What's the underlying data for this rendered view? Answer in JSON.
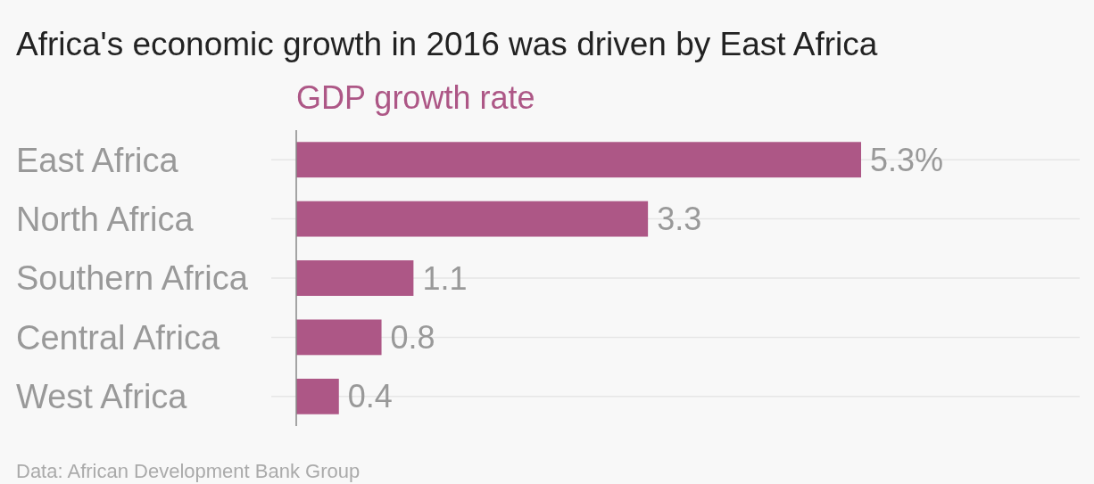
{
  "chart_data": {
    "type": "bar",
    "orientation": "horizontal",
    "title": "Africa's economic growth in 2016 was driven by East Africa",
    "categories": [
      "East Africa",
      "North Africa",
      "Southern Africa",
      "Central Africa",
      "West Africa"
    ],
    "series": [
      {
        "name": "GDP growth rate",
        "color": "#ad5786",
        "values": [
          5.3,
          3.3,
          1.1,
          0.8,
          0.4
        ],
        "value_labels": [
          "5.3%",
          "3.3",
          "1.1",
          "0.8",
          "0.4"
        ]
      }
    ],
    "grid": "y",
    "annotations": [
      "Data: African Development Bank Group"
    ]
  }
}
